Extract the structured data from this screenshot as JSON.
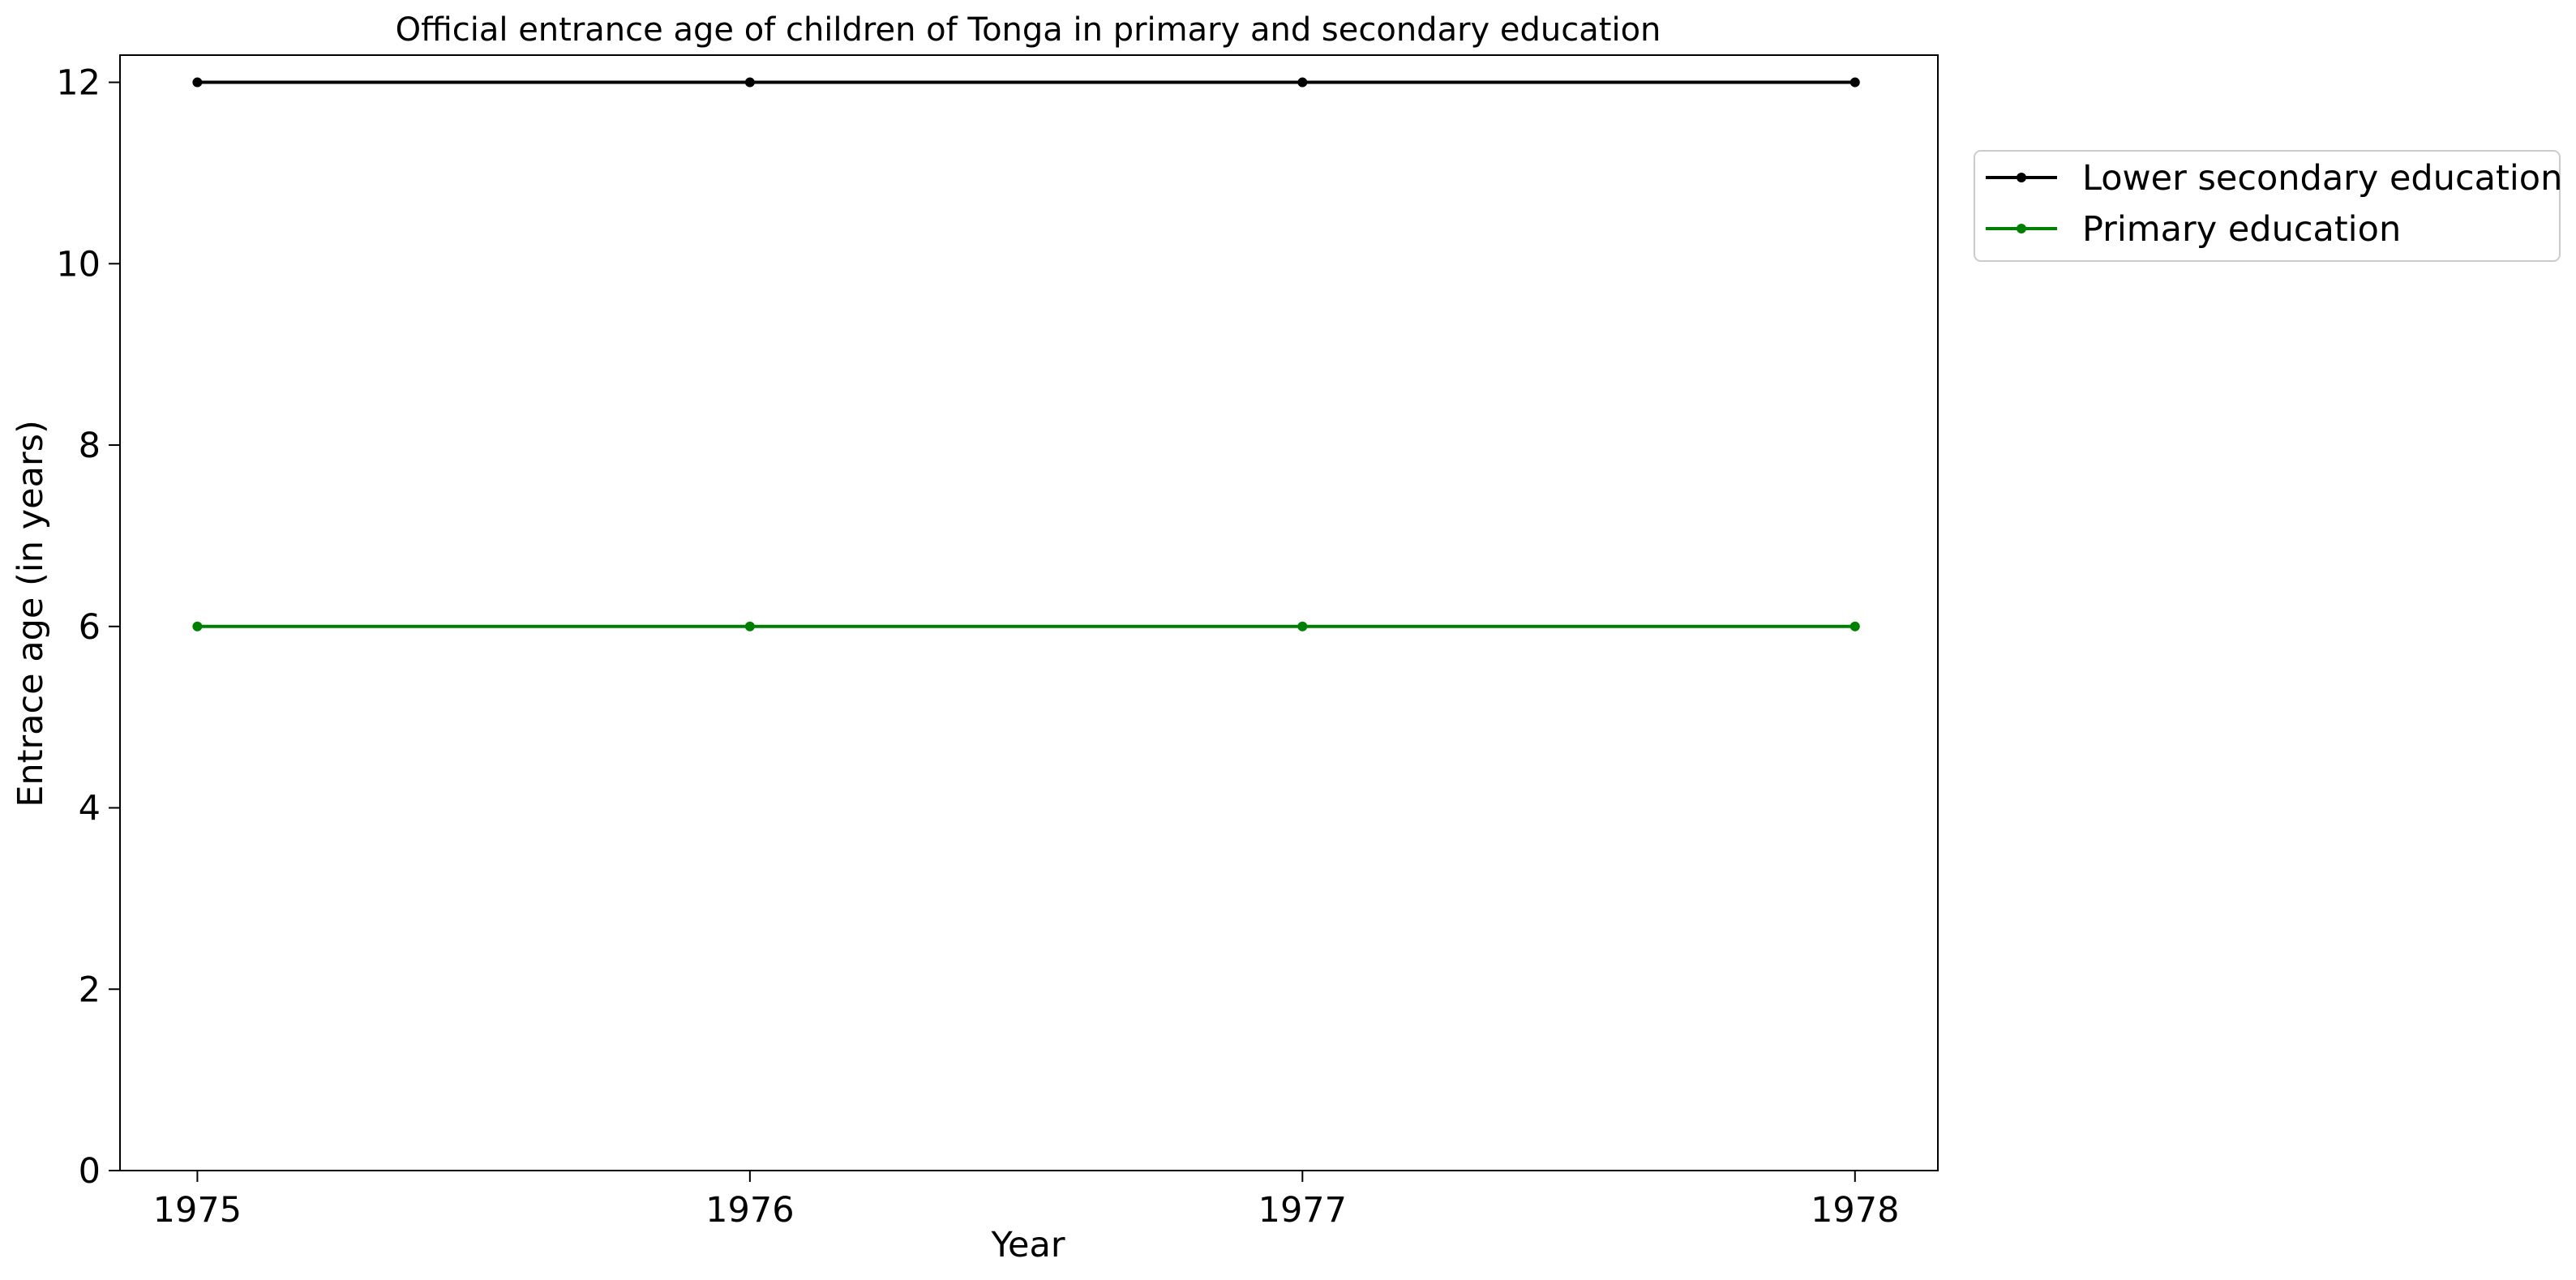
{
  "chart_data": {
    "type": "line",
    "title": "Official entrance age of children of Tonga in primary and secondary education",
    "xlabel": "Year",
    "ylabel": "Entrace age (in  years)",
    "x": [
      1975,
      1976,
      1977,
      1978
    ],
    "x_tick_labels": [
      "1975",
      "1976",
      "1977",
      "1978"
    ],
    "xlim": [
      1974.86,
      1978.15
    ],
    "ylim": [
      0,
      12.3
    ],
    "y_ticks": [
      0,
      2,
      4,
      6,
      8,
      10,
      12
    ],
    "y_tick_labels": [
      "0",
      "2",
      "4",
      "6",
      "8",
      "10",
      "12"
    ],
    "grid": false,
    "legend_position": "outside-right-top",
    "series": [
      {
        "name": "Lower secondary education",
        "color": "#000000",
        "values": [
          12,
          12,
          12,
          12
        ]
      },
      {
        "name": "Primary education",
        "color": "#008000",
        "values": [
          6,
          6,
          6,
          6
        ]
      }
    ]
  }
}
